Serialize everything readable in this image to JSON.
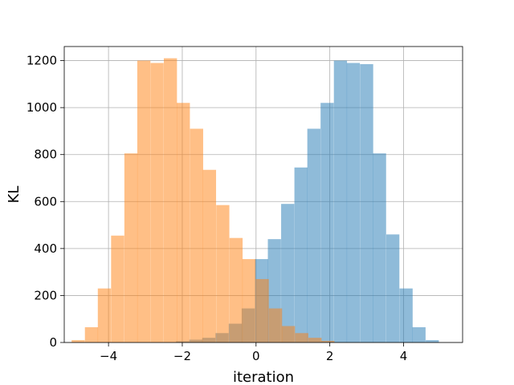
{
  "chart_data": {
    "type": "histogram",
    "title": "",
    "xlabel": "iteration",
    "ylabel": "KL",
    "xlim": [
      -5.2,
      5.6
    ],
    "ylim": [
      0,
      1260
    ],
    "xticks": [
      -4,
      -2,
      0,
      2,
      4
    ],
    "yticks": [
      0,
      200,
      400,
      600,
      800,
      1000,
      1200
    ],
    "xtick_labels": [
      "−4",
      "−2",
      "0",
      "2",
      "4"
    ],
    "ytick_labels": [
      "0",
      "200",
      "400",
      "600",
      "800",
      "1000",
      "1200"
    ],
    "grid": true,
    "legend": false,
    "series": [
      {
        "color": "#1f77b4",
        "alpha": 0.5,
        "bin_width": 0.356,
        "bins": [
          {
            "x0": -2.17,
            "value": 5
          },
          {
            "x0": -1.81,
            "value": 12
          },
          {
            "x0": -1.46,
            "value": 20
          },
          {
            "x0": -1.1,
            "value": 40
          },
          {
            "x0": -0.74,
            "value": 80
          },
          {
            "x0": -0.39,
            "value": 145
          },
          {
            "x0": -0.03,
            "value": 355
          },
          {
            "x0": 0.32,
            "value": 440
          },
          {
            "x0": 0.68,
            "value": 590
          },
          {
            "x0": 1.04,
            "value": 745
          },
          {
            "x0": 1.39,
            "value": 910
          },
          {
            "x0": 1.75,
            "value": 1020
          },
          {
            "x0": 2.11,
            "value": 1200
          },
          {
            "x0": 2.46,
            "value": 1190
          },
          {
            "x0": 2.82,
            "value": 1185
          },
          {
            "x0": 3.17,
            "value": 805
          },
          {
            "x0": 3.53,
            "value": 460
          },
          {
            "x0": 3.89,
            "value": 230
          },
          {
            "x0": 4.24,
            "value": 65
          },
          {
            "x0": 4.6,
            "value": 10
          }
        ]
      },
      {
        "color": "#ff7f0e",
        "alpha": 0.5,
        "bin_width": 0.356,
        "bins": [
          {
            "x0": -5.0,
            "value": 10
          },
          {
            "x0": -4.64,
            "value": 65
          },
          {
            "x0": -4.29,
            "value": 230
          },
          {
            "x0": -3.93,
            "value": 455
          },
          {
            "x0": -3.57,
            "value": 805
          },
          {
            "x0": -3.22,
            "value": 1200
          },
          {
            "x0": -2.86,
            "value": 1190
          },
          {
            "x0": -2.5,
            "value": 1210
          },
          {
            "x0": -2.15,
            "value": 1020
          },
          {
            "x0": -1.79,
            "value": 910
          },
          {
            "x0": -1.44,
            "value": 735
          },
          {
            "x0": -1.08,
            "value": 585
          },
          {
            "x0": -0.72,
            "value": 445
          },
          {
            "x0": -0.37,
            "value": 355
          },
          {
            "x0": -0.01,
            "value": 270
          },
          {
            "x0": 0.35,
            "value": 145
          },
          {
            "x0": 0.7,
            "value": 70
          },
          {
            "x0": 1.06,
            "value": 40
          },
          {
            "x0": 1.42,
            "value": 20
          },
          {
            "x0": 1.77,
            "value": 7
          }
        ]
      }
    ]
  }
}
